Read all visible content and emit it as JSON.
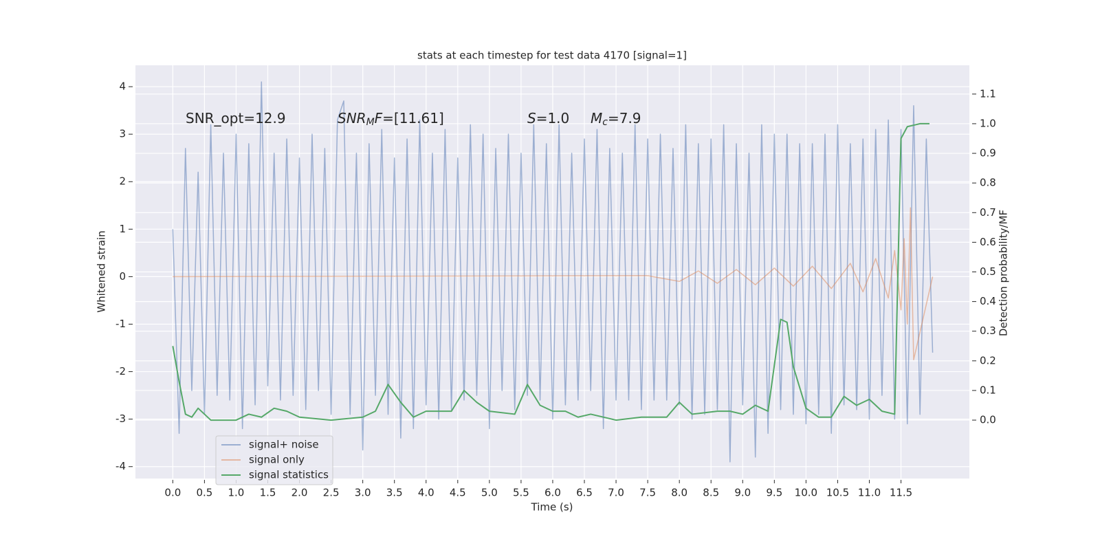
{
  "chart_data": {
    "type": "line",
    "title": "stats at each timestep for test data 4170 [signal=1]",
    "xlabel": "Time (s)",
    "ylabel": "Whitened strain",
    "y2label": "Detection probability/MF",
    "xlim": [
      -0.59,
      12.58
    ],
    "ylim": [
      -4.25,
      4.45
    ],
    "y2lim": [
      -0.197,
      1.197
    ],
    "xticks": [
      {
        "value": 0,
        "label": "0.0"
      },
      0.5,
      {
        "value": 1,
        "label": "1.0"
      },
      1.5,
      {
        "value": 2,
        "label": "2.0"
      },
      2.5,
      {
        "value": 3,
        "label": "3.0"
      },
      3.5,
      {
        "value": 4,
        "label": "4.0"
      },
      4.5,
      {
        "value": 5,
        "label": "5.0"
      },
      5.5,
      {
        "value": 6,
        "label": "6.0"
      },
      6.5,
      {
        "value": 7,
        "label": "7.0"
      },
      7.5,
      {
        "value": 8,
        "label": "8.0"
      },
      8.5,
      {
        "value": 9,
        "label": "9.0"
      },
      9.5,
      {
        "value": 10,
        "label": "10.0"
      },
      10.5,
      {
        "value": 11,
        "label": "11.0"
      },
      11.5
    ],
    "yticks": [
      -4,
      -3,
      -2,
      -1,
      0,
      1,
      2,
      3,
      4
    ],
    "y2ticks": [
      {
        "value": 0,
        "label": "0.0"
      },
      0.1,
      0.2,
      0.3,
      0.4,
      0.5,
      0.6,
      0.7,
      0.8,
      0.9,
      {
        "value": 1,
        "label": "1.0"
      },
      1.1
    ],
    "grid": true,
    "legend": "lower left",
    "annotations": [
      [
        {
          "text": "SNR_opt=12.9"
        }
      ],
      [
        {
          "text": "SNR",
          "italic": true
        },
        {
          "text": "M",
          "italic": true,
          "sub": true
        },
        {
          "text": "F",
          "italic": true
        },
        {
          "text": "=[11.61]"
        }
      ],
      [
        {
          "text": "S",
          "italic": true
        },
        {
          "text": "=1.0"
        }
      ],
      [
        {
          "text": "M",
          "italic": true
        },
        {
          "text": "c",
          "italic": true,
          "sub": true
        },
        {
          "text": "=7.9"
        }
      ]
    ],
    "series": [
      {
        "name": "signal+ noise",
        "color": "#4c72b0",
        "opacity": 0.5,
        "x": [
          0.0,
          0.1,
          0.2,
          0.3,
          0.4,
          0.5,
          0.6,
          0.7,
          0.8,
          0.9,
          1.0,
          1.1,
          1.2,
          1.3,
          1.4,
          1.5,
          1.6,
          1.7,
          1.8,
          1.9,
          2.0,
          2.1,
          2.2,
          2.3,
          2.4,
          2.5,
          2.6,
          2.7,
          2.8,
          2.9,
          3.0,
          3.1,
          3.2,
          3.3,
          3.4,
          3.5,
          3.6,
          3.7,
          3.8,
          3.9,
          4.0,
          4.1,
          4.2,
          4.3,
          4.4,
          4.5,
          4.6,
          4.7,
          4.8,
          4.9,
          5.0,
          5.1,
          5.2,
          5.3,
          5.4,
          5.5,
          5.6,
          5.7,
          5.8,
          5.9,
          6.0,
          6.1,
          6.2,
          6.3,
          6.4,
          6.5,
          6.6,
          6.7,
          6.8,
          6.9,
          7.0,
          7.1,
          7.2,
          7.3,
          7.4,
          7.5,
          7.6,
          7.7,
          7.8,
          7.9,
          8.0,
          8.1,
          8.2,
          8.3,
          8.4,
          8.5,
          8.6,
          8.7,
          8.8,
          8.9,
          9.0,
          9.1,
          9.2,
          9.3,
          9.4,
          9.5,
          9.6,
          9.7,
          9.8,
          9.9,
          10.0,
          10.1,
          10.2,
          10.3,
          10.4,
          10.5,
          10.6,
          10.7,
          10.8,
          10.9,
          11.0,
          11.1,
          11.2,
          11.3,
          11.4,
          11.5,
          11.6,
          11.7,
          11.8,
          11.9,
          12.0
        ],
        "values": [
          1.0,
          -3.3,
          2.7,
          -2.4,
          2.2,
          -2.9,
          3.2,
          -2.5,
          2.6,
          -2.6,
          3.0,
          -3.2,
          2.8,
          -2.7,
          4.1,
          -2.3,
          2.6,
          -2.6,
          2.9,
          -2.5,
          2.5,
          -2.8,
          3.0,
          -2.4,
          2.7,
          -2.9,
          3.3,
          3.7,
          -2.9,
          2.6,
          -3.65,
          2.8,
          -2.5,
          3.1,
          -2.9,
          2.5,
          -3.4,
          2.9,
          -3.2,
          3.3,
          -2.7,
          2.6,
          -3.0,
          3.1,
          -2.8,
          2.5,
          -2.6,
          3.2,
          -2.5,
          3.0,
          -3.2,
          2.7,
          -2.4,
          3.0,
          -2.8,
          2.6,
          -2.5,
          3.2,
          -2.6,
          2.8,
          -3.0,
          3.2,
          -2.7,
          2.6,
          -2.6,
          2.9,
          -2.4,
          3.1,
          -3.2,
          2.7,
          -2.6,
          2.6,
          -2.6,
          3.2,
          -2.8,
          2.9,
          -2.6,
          3.0,
          -2.6,
          2.7,
          -2.7,
          3.2,
          -3.0,
          2.8,
          -2.9,
          2.9,
          -2.8,
          3.2,
          -3.9,
          2.8,
          -2.7,
          2.6,
          -3.8,
          3.2,
          -3.3,
          3.0,
          -2.8,
          3.0,
          -2.9,
          2.8,
          -3.1,
          2.8,
          -2.9,
          3.0,
          -3.3,
          3.2,
          -2.7,
          2.8,
          -2.8,
          2.9,
          -3.0,
          3.1,
          -2.5,
          3.3,
          -3.0,
          3.1,
          -3.1,
          3.6,
          -2.9,
          2.9,
          -1.6
        ]
      },
      {
        "name": "signal only",
        "color": "#dd8452",
        "opacity": 0.5,
        "x": [
          0,
          7.5,
          8.0,
          8.3,
          8.6,
          8.9,
          9.2,
          9.5,
          9.8,
          10.1,
          10.4,
          10.7,
          10.9,
          11.1,
          11.3,
          11.4,
          11.5,
          11.55,
          11.6,
          11.65,
          11.7,
          12.0
        ],
        "values": [
          0,
          0.02,
          -0.1,
          0.12,
          -0.14,
          0.15,
          -0.17,
          0.18,
          -0.2,
          0.22,
          -0.25,
          0.28,
          -0.32,
          0.38,
          -0.45,
          0.55,
          -0.7,
          0.8,
          -1.0,
          1.45,
          -1.75,
          0
        ]
      },
      {
        "name": "signal statistics",
        "color": "#55a868",
        "opacity": 1,
        "axis": "y2",
        "x": [
          0.0,
          0.1,
          0.2,
          0.3,
          0.4,
          0.5,
          0.6,
          0.8,
          1.0,
          1.2,
          1.4,
          1.6,
          1.8,
          2.0,
          2.5,
          3.0,
          3.2,
          3.4,
          3.6,
          3.8,
          4.0,
          4.2,
          4.4,
          4.6,
          4.8,
          5.0,
          5.4,
          5.6,
          5.8,
          6.0,
          6.2,
          6.4,
          6.6,
          7.0,
          7.4,
          7.8,
          8.0,
          8.2,
          8.6,
          8.8,
          9.0,
          9.2,
          9.4,
          9.6,
          9.7,
          9.8,
          10.0,
          10.2,
          10.4,
          10.6,
          10.8,
          11.0,
          11.2,
          11.4,
          11.5,
          11.6,
          11.8,
          11.95
        ],
        "values": [
          0.25,
          0.13,
          0.02,
          0.01,
          0.04,
          0.02,
          0.0,
          0.0,
          0.0,
          0.02,
          0.01,
          0.04,
          0.03,
          0.01,
          0.0,
          0.01,
          0.03,
          0.12,
          0.06,
          0.01,
          0.03,
          0.03,
          0.03,
          0.1,
          0.06,
          0.03,
          0.02,
          0.12,
          0.05,
          0.03,
          0.03,
          0.01,
          0.02,
          0.0,
          0.01,
          0.01,
          0.06,
          0.02,
          0.03,
          0.03,
          0.02,
          0.05,
          0.03,
          0.34,
          0.33,
          0.18,
          0.04,
          0.01,
          0.01,
          0.08,
          0.05,
          0.07,
          0.03,
          0.02,
          0.95,
          0.99,
          1.0,
          1.0
        ]
      }
    ]
  }
}
